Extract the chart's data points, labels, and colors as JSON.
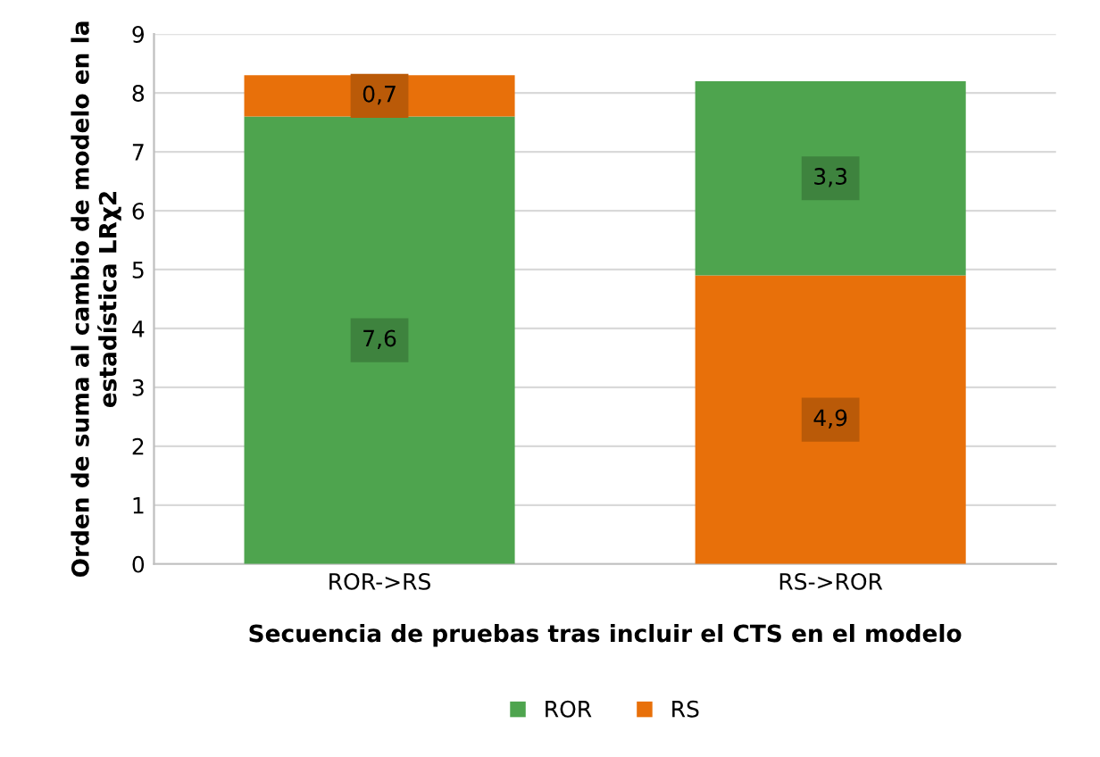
{
  "chart_data": {
    "type": "bar",
    "stacked": true,
    "xlabel": "Secuencia de pruebas tras incluir el CTS en el modelo",
    "ylabel": "Orden de suma al cambio de modelo en la estadística LRχ2",
    "categories": [
      "ROR->RS",
      "RS->ROR"
    ],
    "series": [
      {
        "name": "ROR",
        "color": "#4ea44e",
        "values": [
          7.6,
          null
        ],
        "value_labels": [
          "7,6",
          null
        ]
      },
      {
        "name": "RS",
        "color": "#e8700a",
        "values": [
          0.7,
          4.9
        ],
        "value_labels": [
          "0,7",
          "4,9"
        ]
      },
      {
        "color": "#4ea44e",
        "values": [
          null,
          3.3
        ],
        "value_labels": [
          null,
          "3,3"
        ]
      }
    ],
    "ylim": [
      0,
      9
    ],
    "yticks": [
      0,
      1,
      2,
      3,
      4,
      5,
      6,
      7,
      8,
      9
    ],
    "grid": "y",
    "legend": "bottom"
  }
}
